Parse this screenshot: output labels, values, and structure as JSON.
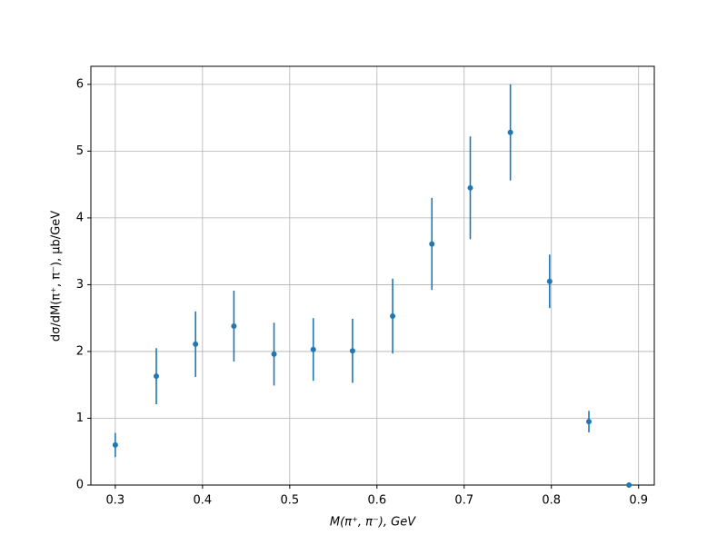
{
  "chart_data": {
    "type": "errorbar",
    "xlabel": "M(π⁺, π⁻), GeV",
    "ylabel": "dσ/dM(π⁺, π⁻), μb/GeV",
    "color": "#1f77b4",
    "grid": true,
    "x": [
      0.3,
      0.347,
      0.392,
      0.436,
      0.482,
      0.527,
      0.572,
      0.618,
      0.663,
      0.707,
      0.753,
      0.798,
      0.843,
      0.889
    ],
    "values": [
      0.6,
      1.63,
      2.11,
      2.38,
      1.96,
      2.03,
      2.01,
      2.53,
      3.61,
      4.45,
      5.28,
      3.05,
      0.95,
      0
    ],
    "errors": [
      0.18,
      0.42,
      0.49,
      0.53,
      0.47,
      0.47,
      0.48,
      0.56,
      0.69,
      0.77,
      0.72,
      0.4,
      0.16,
      0
    ],
    "xlim": [
      0.272,
      0.918
    ],
    "ylim": [
      0,
      6.27
    ],
    "xticks": [
      0.3,
      0.4,
      0.5,
      0.6,
      0.7,
      0.8,
      0.9
    ],
    "yticks": [
      0,
      1,
      2,
      3,
      4,
      5,
      6
    ]
  }
}
